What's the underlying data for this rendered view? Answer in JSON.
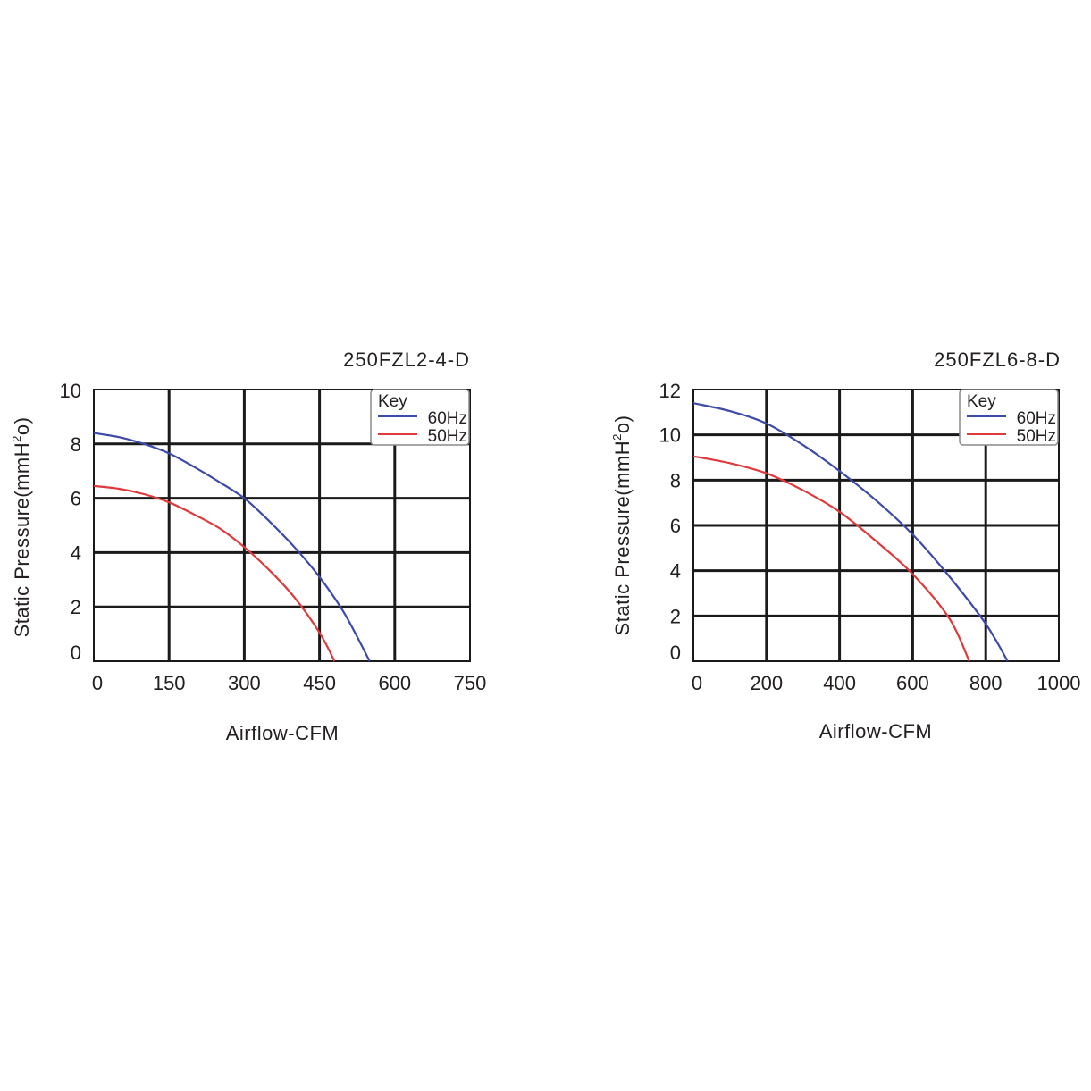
{
  "chart_data": [
    {
      "type": "line",
      "title": "250FZL2-4-D",
      "xlabel": "Airflow-CFM",
      "ylabel_main": "Static Pressure(mmH",
      "ylabel_sup": "2",
      "ylabel_end": "o)",
      "xlim": [
        0,
        750
      ],
      "ylim": [
        0,
        10
      ],
      "xticks": [
        0,
        150,
        300,
        450,
        600,
        750
      ],
      "yticks": [
        0,
        2,
        4,
        6,
        8,
        10
      ],
      "grid": true,
      "legend": {
        "title": "Key",
        "position": "top-right"
      },
      "series": [
        {
          "name": "60Hz",
          "color": "#3d4aa8",
          "x": [
            0,
            50,
            100,
            150,
            200,
            250,
            300,
            350,
            400,
            450,
            500,
            550
          ],
          "y": [
            8.4,
            8.25,
            8.0,
            7.65,
            7.15,
            6.6,
            6.0,
            5.15,
            4.2,
            3.1,
            1.75,
            0
          ]
        },
        {
          "name": "50Hz",
          "color": "#e0393b",
          "x": [
            0,
            50,
            100,
            150,
            200,
            250,
            300,
            350,
            400,
            450,
            480
          ],
          "y": [
            6.45,
            6.35,
            6.15,
            5.85,
            5.4,
            4.9,
            4.2,
            3.35,
            2.35,
            1.05,
            0
          ]
        }
      ]
    },
    {
      "type": "line",
      "title": "250FZL6-8-D",
      "xlabel": "Airflow-CFM",
      "ylabel_main": "Static Pressure(mmH",
      "ylabel_sup": "2",
      "ylabel_end": "o)",
      "xlim": [
        0,
        1000
      ],
      "ylim": [
        0,
        12
      ],
      "xticks": [
        0,
        200,
        400,
        600,
        800,
        1000
      ],
      "yticks": [
        0,
        2,
        4,
        6,
        8,
        10,
        12
      ],
      "grid": true,
      "legend": {
        "title": "Key",
        "position": "top-right"
      },
      "series": [
        {
          "name": "60Hz",
          "color": "#3d4aa8",
          "x": [
            0,
            100,
            200,
            300,
            400,
            500,
            600,
            700,
            800,
            860
          ],
          "y": [
            11.4,
            11.05,
            10.5,
            9.55,
            8.4,
            7.1,
            5.6,
            3.75,
            1.65,
            0
          ]
        },
        {
          "name": "50Hz",
          "color": "#e0393b",
          "x": [
            0,
            100,
            200,
            300,
            400,
            500,
            600,
            700,
            755
          ],
          "y": [
            9.05,
            8.75,
            8.3,
            7.55,
            6.6,
            5.3,
            3.85,
            1.9,
            0
          ]
        }
      ]
    }
  ]
}
